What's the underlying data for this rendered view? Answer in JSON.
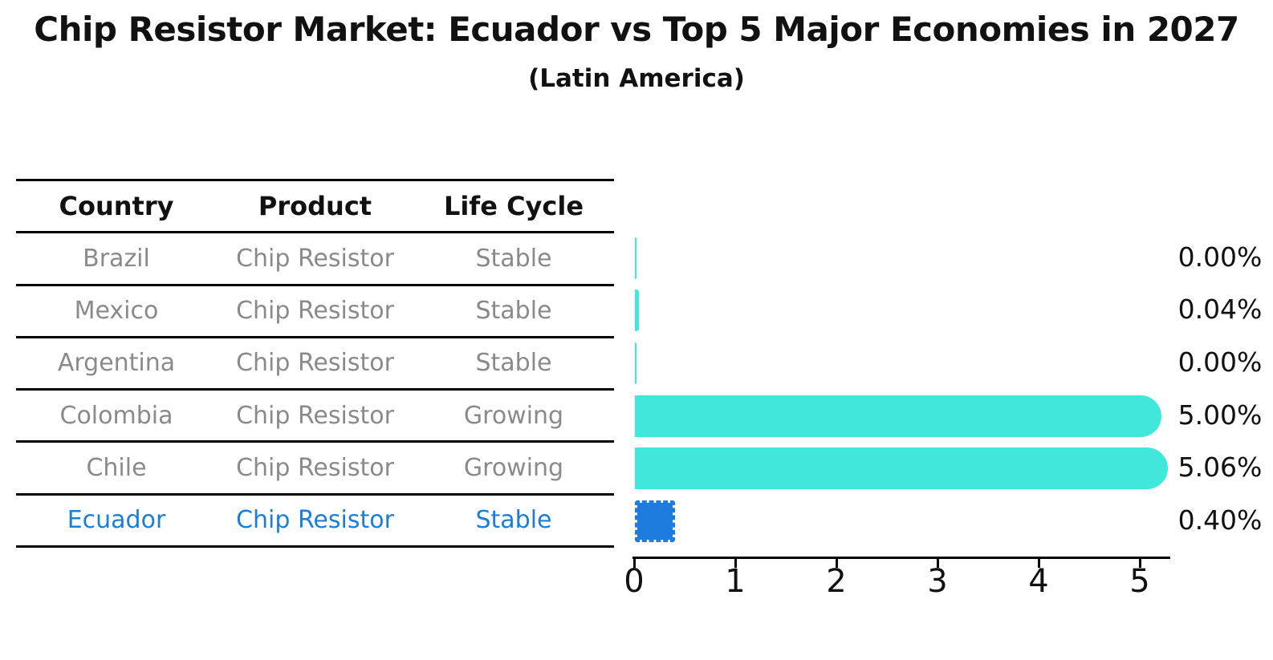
{
  "title": "Chip Resistor Market: Ecuador vs Top 5 Major Economies in 2027",
  "subtitle": "(Latin America)",
  "table": {
    "headers": [
      "Country",
      "Product",
      "Life Cycle"
    ],
    "rows": [
      {
        "country": "Brazil",
        "product": "Chip Resistor",
        "life_cycle": "Stable",
        "highlight": false
      },
      {
        "country": "Mexico",
        "product": "Chip Resistor",
        "life_cycle": "Stable",
        "highlight": false
      },
      {
        "country": "Argentina",
        "product": "Chip Resistor",
        "life_cycle": "Stable",
        "highlight": false
      },
      {
        "country": "Colombia",
        "product": "Chip Resistor",
        "life_cycle": "Growing",
        "highlight": false
      },
      {
        "country": "Chile",
        "product": "Chip Resistor",
        "life_cycle": "Growing",
        "highlight": false
      },
      {
        "country": "Ecuador",
        "product": "Chip Resistor",
        "life_cycle": "Stable",
        "highlight": true
      }
    ]
  },
  "chart_data": {
    "type": "bar",
    "orientation": "horizontal",
    "title": "Chip Resistor Market: Ecuador vs Top 5 Major Economies in 2027",
    "subtitle": "(Latin America)",
    "categories": [
      "Brazil",
      "Mexico",
      "Argentina",
      "Colombia",
      "Chile",
      "Ecuador"
    ],
    "values": [
      0.0,
      0.04,
      0.0,
      5.0,
      5.06,
      0.4
    ],
    "value_labels": [
      "0.00%",
      "0.04%",
      "0.00%",
      "5.00%",
      "5.06%",
      "0.40%"
    ],
    "xlabel": "",
    "ylabel": "",
    "xlim": [
      0,
      5.3
    ],
    "x_ticks": [
      "0",
      "1",
      "2",
      "3",
      "4",
      "5"
    ],
    "grid": false,
    "legend": false,
    "bar_color": "#40e8dc",
    "highlight_category": "Ecuador",
    "highlight_bar_color": "#1f7cdf",
    "highlight_text_color": "#1c7ed6",
    "text_color_muted": "#8a8a8a",
    "axis_color": "#000000"
  }
}
